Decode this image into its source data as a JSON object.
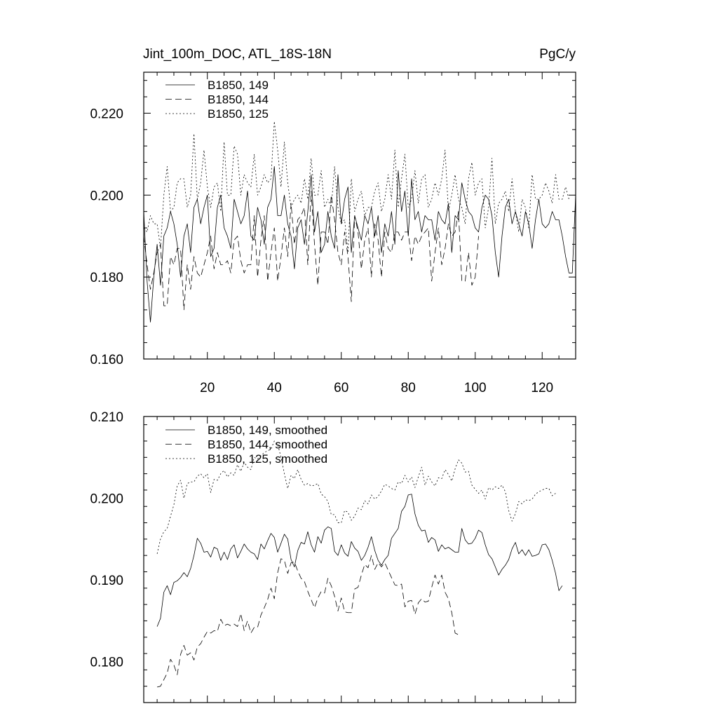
{
  "chart_data": [
    {
      "type": "line",
      "title": "Jint_100m_DOC, ATL_18S-18N",
      "units": "PgC/y",
      "xlabel": "",
      "ylabel": "",
      "xlim": [
        1,
        130
      ],
      "ylim": [
        0.16,
        0.23
      ],
      "x_ticks": [
        20,
        40,
        60,
        80,
        100,
        120
      ],
      "x_tick_labels": [
        "20",
        "40",
        "60",
        "80",
        "100",
        "120"
      ],
      "y_ticks": [
        0.16,
        0.18,
        0.2,
        0.22
      ],
      "y_tick_labels": [
        "0.160",
        "0.180",
        "0.200",
        "0.220"
      ],
      "legend_position": "top-left",
      "series": [
        {
          "name": "B1850, 149",
          "style": "solid",
          "x_start": 1,
          "values": [
            0.196,
            0.179,
            0.169,
            0.18,
            0.188,
            0.178,
            0.19,
            0.192,
            0.196,
            0.193,
            0.188,
            0.18,
            0.19,
            0.193,
            0.186,
            0.197,
            0.199,
            0.193,
            0.197,
            0.2,
            0.185,
            0.187,
            0.197,
            0.2,
            0.192,
            0.19,
            0.187,
            0.199,
            0.196,
            0.193,
            0.195,
            0.201,
            0.19,
            0.189,
            0.197,
            0.194,
            0.188,
            0.197,
            0.199,
            0.207,
            0.195,
            0.195,
            0.2,
            0.193,
            0.19,
            0.182,
            0.192,
            0.194,
            0.188,
            0.196,
            0.205,
            0.191,
            0.196,
            0.186,
            0.188,
            0.196,
            0.19,
            0.187,
            0.205,
            0.193,
            0.199,
            0.202,
            0.186,
            0.195,
            0.192,
            0.189,
            0.195,
            0.193,
            0.197,
            0.19,
            0.195,
            0.186,
            0.193,
            0.19,
            0.196,
            0.188,
            0.206,
            0.196,
            0.201,
            0.19,
            0.204,
            0.194,
            0.196,
            0.191,
            0.195,
            0.194,
            0.194,
            0.189,
            0.196,
            0.194,
            0.193,
            0.198,
            0.186,
            0.195,
            0.194,
            0.203,
            0.199,
            0.196,
            0.195,
            0.192,
            0.191,
            0.197,
            0.2,
            0.199,
            0.195,
            0.186,
            0.18,
            0.19,
            0.197,
            0.199,
            0.193,
            0.196,
            0.193,
            0.19,
            0.196,
            0.193,
            0.187,
            0.194,
            0.199,
            0.193,
            0.192,
            0.193,
            0.196,
            0.194,
            0.194,
            0.19,
            0.185,
            0.181,
            0.181,
            0.2
          ]
        },
        {
          "name": "B1850, 144",
          "style": "dashed",
          "x_start": 1,
          "values": [
            0.19,
            0.183,
            0.177,
            0.181,
            0.186,
            0.188,
            0.173,
            0.173,
            0.185,
            0.183,
            0.187,
            0.187,
            0.172,
            0.183,
            0.177,
            0.185,
            0.181,
            0.18,
            0.183,
            0.186,
            0.19,
            0.182,
            0.186,
            0.183,
            0.183,
            0.184,
            0.181,
            0.189,
            0.19,
            0.184,
            0.181,
            0.183,
            0.183,
            0.195,
            0.18,
            0.189,
            0.195,
            0.179,
            0.186,
            0.192,
            0.179,
            0.185,
            0.192,
            0.185,
            0.198,
            0.188,
            0.194,
            0.195,
            0.197,
            0.183,
            0.201,
            0.188,
            0.178,
            0.191,
            0.191,
            0.188,
            0.2,
            0.194,
            0.186,
            0.183,
            0.191,
            0.185,
            0.174,
            0.195,
            0.191,
            0.182,
            0.189,
            0.192,
            0.18,
            0.193,
            0.189,
            0.18,
            0.191,
            0.187,
            0.186,
            0.191,
            0.191,
            0.189,
            0.191,
            0.191,
            0.184,
            0.19,
            0.188,
            0.19,
            0.191,
            0.192,
            0.179,
            0.186,
            0.192,
            0.183,
            0.187,
            0.193,
            0.19,
            0.191,
            0.196,
            0.179,
            0.179,
            0.186,
            0.178,
            0.18,
            0.19
          ]
        },
        {
          "name": "B1850, 125",
          "style": "dotted",
          "x_start": 1,
          "values": [
            0.192,
            0.191,
            0.195,
            0.193,
            0.193,
            0.187,
            0.2,
            0.207,
            0.196,
            0.197,
            0.203,
            0.204,
            0.204,
            0.197,
            0.2,
            0.215,
            0.199,
            0.203,
            0.211,
            0.202,
            0.197,
            0.202,
            0.203,
            0.196,
            0.213,
            0.2,
            0.2,
            0.212,
            0.21,
            0.2,
            0.205,
            0.203,
            0.202,
            0.21,
            0.2,
            0.202,
            0.205,
            0.203,
            0.204,
            0.218,
            0.211,
            0.202,
            0.213,
            0.203,
            0.197,
            0.199,
            0.2,
            0.198,
            0.204,
            0.199,
            0.209,
            0.2,
            0.2,
            0.206,
            0.197,
            0.199,
            0.197,
            0.207,
            0.197,
            0.193,
            0.194,
            0.186,
            0.204,
            0.196,
            0.199,
            0.201,
            0.195,
            0.197,
            0.197,
            0.201,
            0.203,
            0.196,
            0.199,
            0.205,
            0.199,
            0.211,
            0.197,
            0.204,
            0.21,
            0.197,
            0.199,
            0.206,
            0.198,
            0.204,
            0.205,
            0.197,
            0.199,
            0.203,
            0.2,
            0.204,
            0.211,
            0.196,
            0.2,
            0.205,
            0.199,
            0.197,
            0.193,
            0.204,
            0.208,
            0.2,
            0.203,
            0.204,
            0.192,
            0.197,
            0.209,
            0.193,
            0.198,
            0.199,
            0.201,
            0.196,
            0.204,
            0.196,
            0.191,
            0.199,
            0.197,
            0.192,
            0.205,
            0.199,
            0.199,
            0.2,
            0.203,
            0.201,
            0.198,
            0.205,
            0.199,
            0.199,
            0.202,
            0.199
          ]
        }
      ]
    },
    {
      "type": "line",
      "title": "",
      "xlabel": "",
      "ylabel": "",
      "xlim": [
        1,
        130
      ],
      "ylim": [
        0.175,
        0.21
      ],
      "x_ticks": [
        20,
        40,
        60,
        80,
        100,
        120
      ],
      "y_ticks": [
        0.18,
        0.19,
        0.2,
        0.21
      ],
      "y_tick_labels": [
        "0.180",
        "0.190",
        "0.200",
        "0.210"
      ],
      "legend_position": "top-left",
      "series": [
        {
          "name": "B1850, 149, smoothed",
          "style": "solid",
          "x_start": 5,
          "values": [
            0.1843,
            0.1853,
            0.1885,
            0.1893,
            0.1882,
            0.1897,
            0.1899,
            0.1903,
            0.1909,
            0.1904,
            0.1914,
            0.193,
            0.1951,
            0.1945,
            0.1934,
            0.1935,
            0.1928,
            0.194,
            0.1938,
            0.1924,
            0.1934,
            0.1925,
            0.1938,
            0.1943,
            0.1927,
            0.1935,
            0.1944,
            0.1938,
            0.1934,
            0.1932,
            0.1925,
            0.1944,
            0.1938,
            0.1948,
            0.1957,
            0.1952,
            0.1934,
            0.1945,
            0.1956,
            0.195,
            0.1925,
            0.1916,
            0.1936,
            0.1946,
            0.1944,
            0.1959,
            0.1943,
            0.1934,
            0.1953,
            0.1945,
            0.1961,
            0.1965,
            0.1963,
            0.1935,
            0.193,
            0.1943,
            0.1933,
            0.1929,
            0.1947,
            0.1939,
            0.1935,
            0.1924,
            0.193,
            0.194,
            0.1953,
            0.1936,
            0.1924,
            0.1918,
            0.1925,
            0.193,
            0.1951,
            0.1957,
            0.1963,
            0.1984,
            0.199,
            0.2004,
            0.2005,
            0.1981,
            0.1967,
            0.196,
            0.1961,
            0.1946,
            0.1952,
            0.1949,
            0.1935,
            0.1943,
            0.1938,
            0.194,
            0.1937,
            0.1934,
            0.1934,
            0.1963,
            0.1949,
            0.1944,
            0.1945,
            0.1951,
            0.1961,
            0.1958,
            0.1943,
            0.1931,
            0.1926,
            0.1916,
            0.1906,
            0.1913,
            0.1918,
            0.1925,
            0.1938,
            0.1946,
            0.1932,
            0.1937,
            0.193,
            0.1937,
            0.1929,
            0.193,
            0.1932,
            0.1943,
            0.1944,
            0.1937,
            0.1924,
            0.1908,
            0.1887,
            0.1893
          ]
        },
        {
          "name": "B1850, 144, smoothed",
          "style": "dashed",
          "x_start": 5,
          "values": [
            0.1769,
            0.177,
            0.1778,
            0.1786,
            0.1803,
            0.1796,
            0.1784,
            0.1809,
            0.182,
            0.1808,
            0.1811,
            0.1802,
            0.1818,
            0.1822,
            0.183,
            0.1837,
            0.1835,
            0.1838,
            0.1837,
            0.1852,
            0.1844,
            0.1846,
            0.1844,
            0.1846,
            0.1843,
            0.1859,
            0.1838,
            0.185,
            0.1835,
            0.1842,
            0.1842,
            0.1857,
            0.1866,
            0.1876,
            0.189,
            0.1877,
            0.1909,
            0.1926,
            0.1924,
            0.1908,
            0.1921,
            0.1922,
            0.1911,
            0.1902,
            0.1898,
            0.1886,
            0.1876,
            0.1866,
            0.1878,
            0.1886,
            0.1884,
            0.1902,
            0.1893,
            0.188,
            0.1862,
            0.1878,
            0.1861,
            0.186,
            0.186,
            0.1889,
            0.1891,
            0.1906,
            0.1919,
            0.1915,
            0.193,
            0.1913,
            0.1921,
            0.1916,
            0.1921,
            0.1912,
            0.1903,
            0.1894,
            0.1893,
            0.1895,
            0.1867,
            0.1874,
            0.1875,
            0.1858,
            0.1872,
            0.1877,
            0.1873,
            0.1874,
            0.1891,
            0.1906,
            0.1895,
            0.1906,
            0.1885,
            0.1877,
            0.186,
            0.1835,
            0.1833
          ]
        },
        {
          "name": "B1850, 125, smoothed",
          "style": "dotted",
          "x_start": 5,
          "values": [
            0.1932,
            0.195,
            0.1959,
            0.1963,
            0.1978,
            0.1992,
            0.2015,
            0.2022,
            0.2,
            0.2018,
            0.202,
            0.202,
            0.2027,
            0.203,
            0.2025,
            0.203,
            0.2007,
            0.2023,
            0.2022,
            0.203,
            0.2034,
            0.2026,
            0.2031,
            0.2028,
            0.2041,
            0.2033,
            0.2044,
            0.2038,
            0.2035,
            0.205,
            0.2048,
            0.2052,
            0.2056,
            0.2058,
            0.206,
            0.207,
            0.2066,
            0.205,
            0.203,
            0.2012,
            0.2028,
            0.2024,
            0.2035,
            0.2023,
            0.2016,
            0.2018,
            0.2015,
            0.2016,
            0.2018,
            0.2005,
            0.2002,
            0.1996,
            0.198,
            0.198,
            0.197,
            0.197,
            0.1985,
            0.1983,
            0.1973,
            0.1978,
            0.1988,
            0.1986,
            0.1997,
            0.1993,
            0.2004,
            0.1999,
            0.2002,
            0.2009,
            0.2017,
            0.2015,
            0.2012,
            0.201,
            0.202,
            0.2018,
            0.2028,
            0.202,
            0.2026,
            0.2013,
            0.2026,
            0.2038,
            0.2016,
            0.2027,
            0.202,
            0.2015,
            0.2025,
            0.2024,
            0.2035,
            0.2029,
            0.2021,
            0.2036,
            0.2047,
            0.2043,
            0.2032,
            0.2033,
            0.2016,
            0.2011,
            0.2006,
            0.201,
            0.1999,
            0.2013,
            0.201,
            0.2014,
            0.2012,
            0.2016,
            0.2008,
            0.1985,
            0.1972,
            0.1981,
            0.1996,
            0.1993,
            0.1998,
            0.1997,
            0.1999,
            0.2005,
            0.2008,
            0.201,
            0.2012,
            0.2012,
            0.2003,
            0.2006
          ]
        }
      ]
    }
  ]
}
